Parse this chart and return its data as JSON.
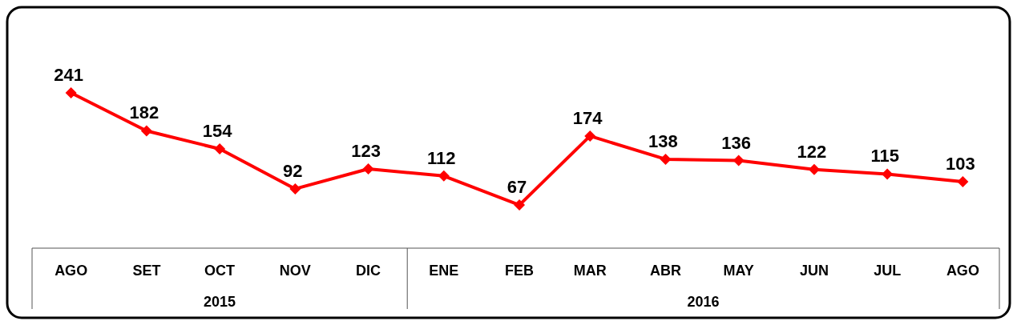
{
  "chart_data": {
    "type": "line",
    "x": [
      "2015-08",
      "2015-09",
      "2015-10",
      "2015-11",
      "2015-12",
      "2016-01",
      "2016-02",
      "2016-03",
      "2016-04",
      "2016-05",
      "2016-06",
      "2016-07",
      "2016-08"
    ],
    "xticks": [
      {
        "value": "2015-08",
        "label": "AGO"
      },
      {
        "value": "2015-09",
        "label": "SET"
      },
      {
        "value": "2015-10",
        "label": "OCT"
      },
      {
        "value": "2015-11",
        "label": "NOV"
      },
      {
        "value": "2015-12",
        "label": "DIC"
      },
      {
        "value": "2016-01",
        "label": "ENE"
      },
      {
        "value": "2016-02",
        "label": "FEB"
      },
      {
        "value": "2016-03",
        "label": "MAR"
      },
      {
        "value": "2016-04",
        "label": "ABR"
      },
      {
        "value": "2016-05",
        "label": "MAY"
      },
      {
        "value": "2016-06",
        "label": "JUN"
      },
      {
        "value": "2016-07",
        "label": "JUL"
      },
      {
        "value": "2016-08",
        "label": "AGO"
      }
    ],
    "xlim": [
      "2015-07-16",
      "2016-08-16"
    ],
    "series": [
      {
        "color": "#ff0000",
        "values": [
          241,
          182,
          154,
          92,
          123,
          112,
          67,
          174,
          138,
          136,
          122,
          115,
          103
        ]
      }
    ],
    "data_labels": true,
    "marker": "diamond",
    "line_style": "solid",
    "annotations": [
      "2015",
      "2016"
    ]
  }
}
